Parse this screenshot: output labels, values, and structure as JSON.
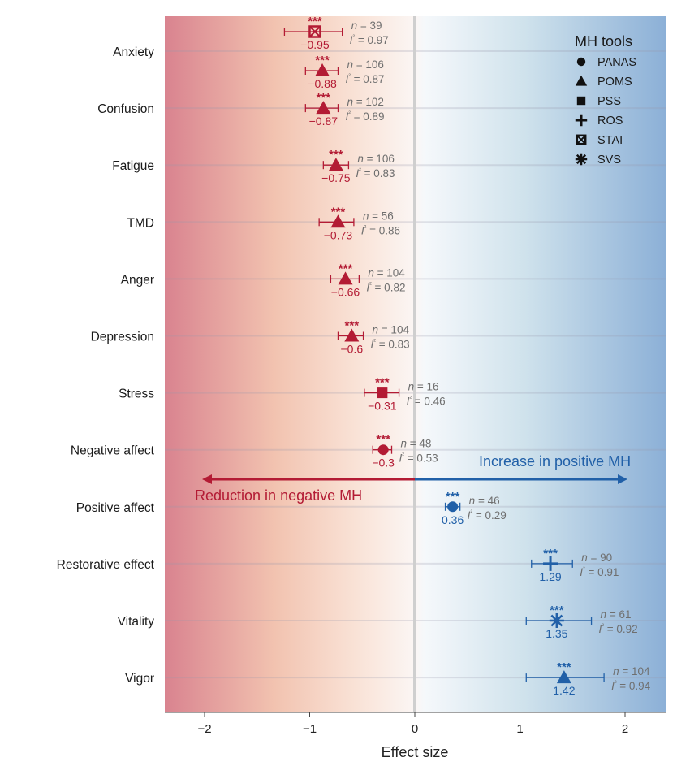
{
  "chart_data": {
    "type": "forest",
    "xlabel": "Effect size",
    "xlim": [
      -2.38,
      2.38
    ],
    "xticks": [
      -2,
      -1,
      0,
      1,
      2
    ],
    "xtick_labels": [
      "−2",
      "−1",
      "0",
      "1",
      "2"
    ],
    "grid": "horizontal row lines",
    "categories": [
      "Anxiety",
      "Confusion",
      "Fatigue",
      "TMD",
      "Anger",
      "Depression",
      "Stress",
      "Negative affect",
      "Positive affect",
      "Restorative effect",
      "Vitality",
      "Vigor"
    ],
    "series": [
      {
        "category": "Anxiety",
        "tool": "STAI",
        "value": -0.95,
        "label": "−0.95",
        "ci": [
          -1.24,
          -0.69
        ],
        "sig": "***",
        "n": "n = 39",
        "i2": "I² = 0.97",
        "direction": "negative",
        "sub": -1
      },
      {
        "category": "Anxiety",
        "tool": "POMS",
        "value": -0.88,
        "label": "−0.88",
        "ci": [
          -1.04,
          -0.73
        ],
        "sig": "***",
        "n": "n = 106",
        "i2": "I² = 0.87",
        "direction": "negative",
        "sub": 1
      },
      {
        "category": "Confusion",
        "tool": "POMS",
        "value": -0.87,
        "label": "−0.87",
        "ci": [
          -1.04,
          -0.73
        ],
        "sig": "***",
        "n": "n = 102",
        "i2": "I² = 0.89",
        "direction": "negative",
        "sub": 0
      },
      {
        "category": "Fatigue",
        "tool": "POMS",
        "value": -0.75,
        "label": "−0.75",
        "ci": [
          -0.87,
          -0.63
        ],
        "sig": "***",
        "n": "n = 106",
        "i2": "I² = 0.83",
        "direction": "negative",
        "sub": 0
      },
      {
        "category": "TMD",
        "tool": "POMS",
        "value": -0.73,
        "label": "−0.73",
        "ci": [
          -0.91,
          -0.58
        ],
        "sig": "***",
        "n": "n = 56",
        "i2": "I² = 0.86",
        "direction": "negative",
        "sub": 0
      },
      {
        "category": "Anger",
        "tool": "POMS",
        "value": -0.66,
        "label": "−0.66",
        "ci": [
          -0.8,
          -0.53
        ],
        "sig": "***",
        "n": "n = 104",
        "i2": "I² = 0.82",
        "direction": "negative",
        "sub": 0
      },
      {
        "category": "Depression",
        "tool": "POMS",
        "value": -0.6,
        "label": "−0.6",
        "ci": [
          -0.73,
          -0.49
        ],
        "sig": "***",
        "n": "n = 104",
        "i2": "I² = 0.83",
        "direction": "negative",
        "sub": 0
      },
      {
        "category": "Stress",
        "tool": "PSS",
        "value": -0.31,
        "label": "−0.31",
        "ci": [
          -0.48,
          -0.15
        ],
        "sig": "***",
        "n": "n = 16",
        "i2": "I² = 0.46",
        "direction": "negative",
        "sub": 0
      },
      {
        "category": "Negative affect",
        "tool": "PANAS",
        "value": -0.3,
        "label": "−0.3",
        "ci": [
          -0.4,
          -0.22
        ],
        "sig": "***",
        "n": "n = 48",
        "i2": "I² = 0.53",
        "direction": "negative",
        "sub": 0
      },
      {
        "category": "Positive affect",
        "tool": "PANAS",
        "value": 0.36,
        "label": "0.36",
        "ci": [
          0.29,
          0.43
        ],
        "sig": "***",
        "n": "n = 46",
        "i2": "I² = 0.29",
        "direction": "positive",
        "sub": 0
      },
      {
        "category": "Restorative effect",
        "tool": "ROS",
        "value": 1.29,
        "label": "1.29",
        "ci": [
          1.11,
          1.5
        ],
        "sig": "***",
        "n": "n = 90",
        "i2": "I² = 0.91",
        "direction": "positive",
        "sub": 0
      },
      {
        "category": "Vitality",
        "tool": "SVS",
        "value": 1.35,
        "label": "1.35",
        "ci": [
          1.06,
          1.68
        ],
        "sig": "***",
        "n": "n = 61",
        "i2": "I² = 0.92",
        "direction": "positive",
        "sub": 0
      },
      {
        "category": "Vigor",
        "tool": "POMS",
        "value": 1.42,
        "label": "1.42",
        "ci": [
          1.06,
          1.8
        ],
        "sig": "***",
        "n": "n = 104",
        "i2": "I² = 0.94",
        "direction": "positive",
        "sub": 0
      }
    ],
    "legend": {
      "title": "MH tools",
      "placement": "top-right",
      "items": [
        {
          "tool": "PANAS",
          "shape": "circle"
        },
        {
          "tool": "POMS",
          "shape": "triangle"
        },
        {
          "tool": "PSS",
          "shape": "square"
        },
        {
          "tool": "ROS",
          "shape": "plus"
        },
        {
          "tool": "STAI",
          "shape": "crossed-square"
        },
        {
          "tool": "SVS",
          "shape": "asterisk"
        }
      ]
    },
    "annotations": {
      "negative": "Reduction in negative MH",
      "positive": "Increase in positive MH"
    }
  },
  "colors": {
    "negative": "#b31b34",
    "positive": "#2160a8",
    "stats": "#6f6f6f",
    "zero": "#c8c8c8"
  }
}
